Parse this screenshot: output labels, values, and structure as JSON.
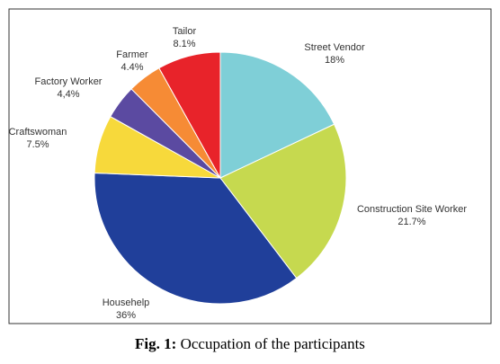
{
  "chart_data": {
    "type": "pie",
    "categories": [
      "Street Vendor",
      "Construction Site Worker",
      "Househelp",
      "Craftswoman",
      "Factory Worker",
      "Farmer",
      "Tailor"
    ],
    "values": [
      18,
      21.7,
      36,
      7.5,
      4.4,
      4.4,
      8.1
    ],
    "value_labels": [
      "18%",
      "21.7%",
      "36%",
      "7.5%",
      "4,4%",
      "4.4%",
      "8.1%"
    ],
    "colors": [
      "#7fcfd7",
      "#c6d94f",
      "#203f9a",
      "#f7d93b",
      "#5b4aa1",
      "#f68b35",
      "#e8232a"
    ]
  },
  "caption": {
    "label": "Fig. 1:",
    "text": "Occupation of the participants"
  }
}
